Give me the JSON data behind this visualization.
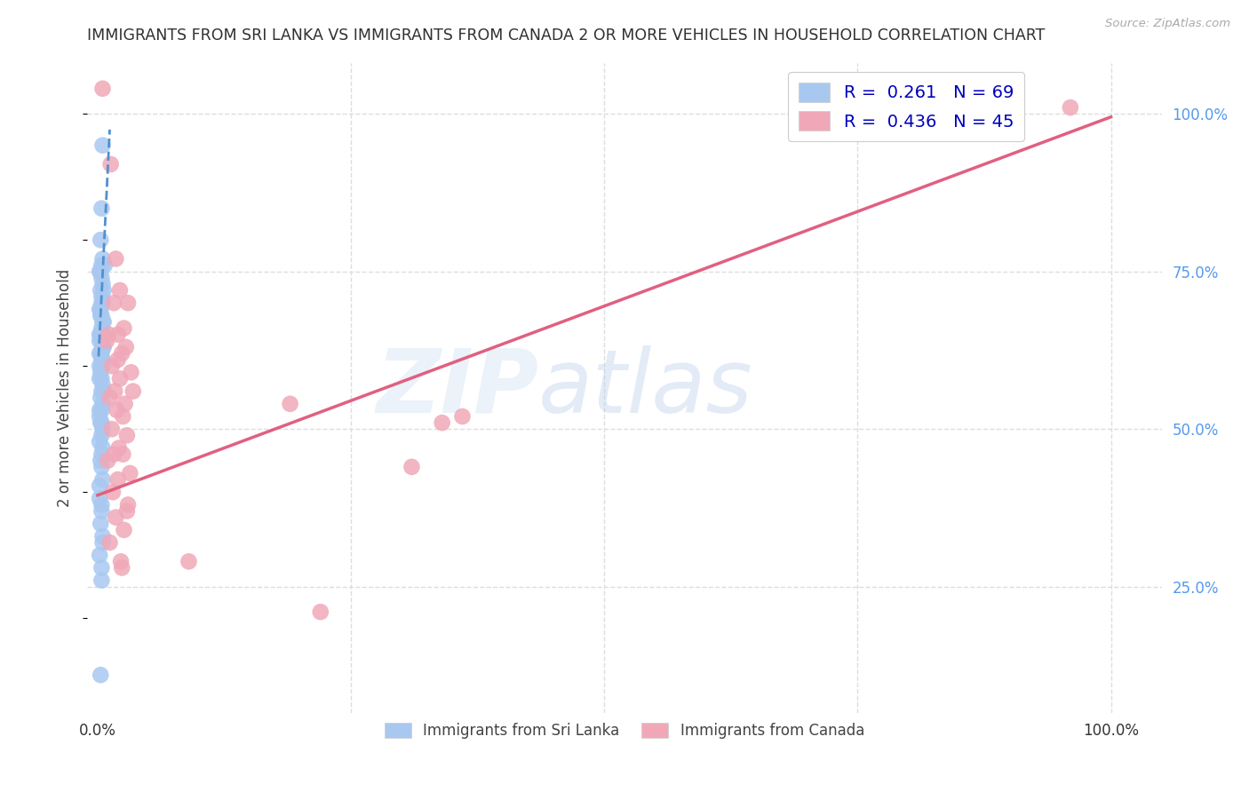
{
  "title": "IMMIGRANTS FROM SRI LANKA VS IMMIGRANTS FROM CANADA 2 OR MORE VEHICLES IN HOUSEHOLD CORRELATION CHART",
  "source": "Source: ZipAtlas.com",
  "ylabel": "2 or more Vehicles in Household",
  "ylabel_ticks": [
    "100.0%",
    "75.0%",
    "50.0%",
    "25.0%"
  ],
  "ylabel_tick_vals": [
    1.0,
    0.75,
    0.5,
    0.25
  ],
  "xlim": [
    -0.01,
    1.05
  ],
  "ylim": [
    0.05,
    1.08
  ],
  "watermark_part1": "ZIP",
  "watermark_part2": "atlas",
  "blue_color": "#a8c8f0",
  "pink_color": "#f0a8b8",
  "blue_line_color": "#5090d0",
  "pink_line_color": "#e06080",
  "title_color": "#303030",
  "right_axis_color": "#5599ee",
  "grid_color": "#dddddd",
  "background_color": "#ffffff",
  "sri_lanka_x": [
    0.005,
    0.004,
    0.003,
    0.005,
    0.007,
    0.004,
    0.003,
    0.002,
    0.004,
    0.005,
    0.006,
    0.003,
    0.004,
    0.005,
    0.004,
    0.003,
    0.002,
    0.003,
    0.004,
    0.005,
    0.006,
    0.004,
    0.005,
    0.003,
    0.002,
    0.002,
    0.004,
    0.005,
    0.006,
    0.004,
    0.003,
    0.002,
    0.004,
    0.005,
    0.005,
    0.004,
    0.002,
    0.003,
    0.004,
    0.002,
    0.005,
    0.006,
    0.004,
    0.003,
    0.005,
    0.004,
    0.002,
    0.002,
    0.004,
    0.003,
    0.005,
    0.004,
    0.002,
    0.005,
    0.004,
    0.003,
    0.004,
    0.005,
    0.002,
    0.002,
    0.004,
    0.004,
    0.003,
    0.005,
    0.005,
    0.002,
    0.004,
    0.004,
    0.003
  ],
  "sri_lanka_y": [
    0.95,
    0.85,
    0.8,
    0.77,
    0.76,
    0.76,
    0.75,
    0.75,
    0.74,
    0.73,
    0.72,
    0.72,
    0.71,
    0.7,
    0.7,
    0.69,
    0.69,
    0.68,
    0.68,
    0.67,
    0.67,
    0.66,
    0.65,
    0.65,
    0.65,
    0.64,
    0.64,
    0.63,
    0.63,
    0.62,
    0.62,
    0.62,
    0.61,
    0.61,
    0.6,
    0.6,
    0.6,
    0.59,
    0.58,
    0.58,
    0.57,
    0.56,
    0.56,
    0.55,
    0.54,
    0.53,
    0.53,
    0.52,
    0.51,
    0.51,
    0.5,
    0.49,
    0.48,
    0.47,
    0.46,
    0.45,
    0.44,
    0.42,
    0.41,
    0.39,
    0.38,
    0.37,
    0.35,
    0.33,
    0.32,
    0.3,
    0.28,
    0.26,
    0.11
  ],
  "canada_x": [
    0.005,
    0.013,
    0.018,
    0.022,
    0.03,
    0.016,
    0.026,
    0.02,
    0.011,
    0.009,
    0.028,
    0.024,
    0.02,
    0.014,
    0.033,
    0.022,
    0.017,
    0.035,
    0.012,
    0.027,
    0.019,
    0.025,
    0.014,
    0.029,
    0.021,
    0.016,
    0.025,
    0.01,
    0.032,
    0.02,
    0.015,
    0.03,
    0.018,
    0.026,
    0.012,
    0.023,
    0.19,
    0.34,
    0.31,
    0.36,
    0.029,
    0.09,
    0.22,
    0.024,
    0.96
  ],
  "canada_y": [
    1.04,
    0.92,
    0.77,
    0.72,
    0.7,
    0.7,
    0.66,
    0.65,
    0.65,
    0.64,
    0.63,
    0.62,
    0.61,
    0.6,
    0.59,
    0.58,
    0.56,
    0.56,
    0.55,
    0.54,
    0.53,
    0.52,
    0.5,
    0.49,
    0.47,
    0.46,
    0.46,
    0.45,
    0.43,
    0.42,
    0.4,
    0.38,
    0.36,
    0.34,
    0.32,
    0.29,
    0.54,
    0.51,
    0.44,
    0.52,
    0.37,
    0.29,
    0.21,
    0.28,
    1.01
  ],
  "blue_trend_x0": 0.001,
  "blue_trend_x1": 0.012,
  "blue_trend_y0": 0.615,
  "blue_trend_y1": 0.975,
  "pink_trend_x0": 0.0,
  "pink_trend_x1": 1.0,
  "pink_trend_y0": 0.395,
  "pink_trend_y1": 0.995
}
